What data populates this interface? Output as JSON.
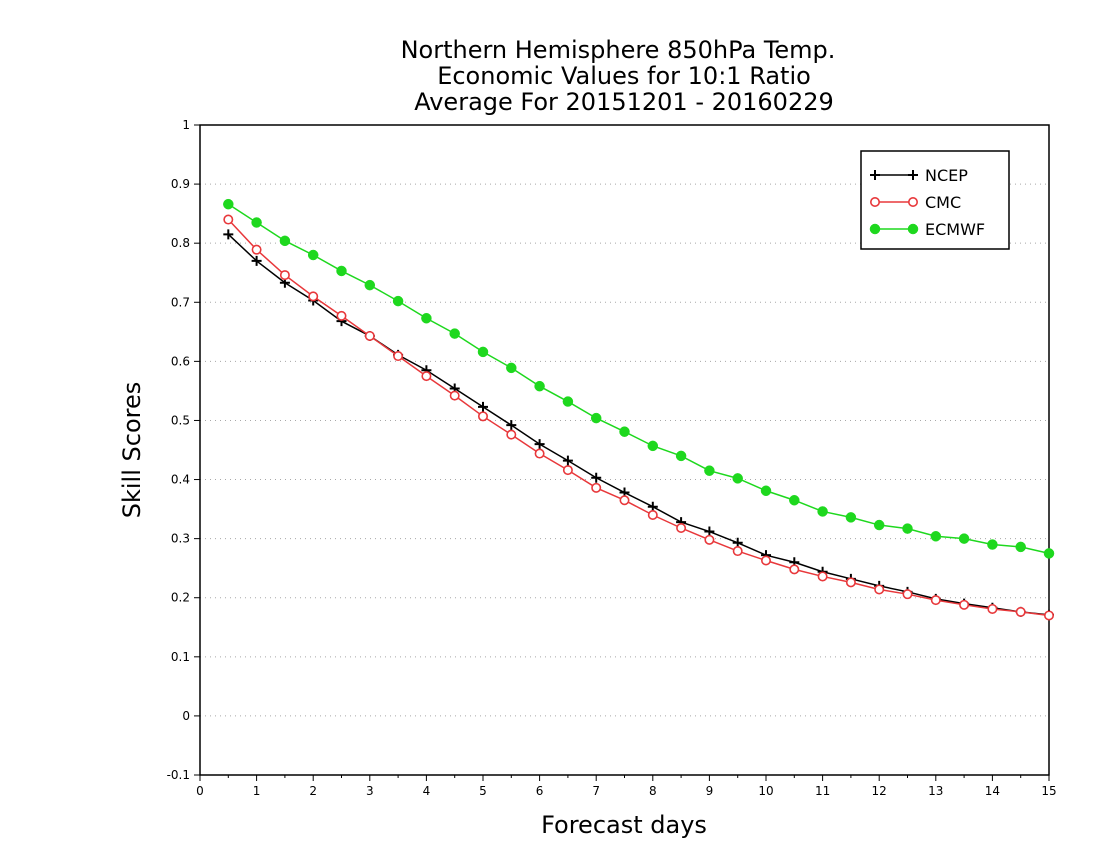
{
  "chart_data": {
    "type": "line",
    "title": [
      "Northern Hemisphere 850hPa Temp.",
      "Economic Values for 10:1 Ratio",
      "Average For 20151201 - 20160229"
    ],
    "xlabel": "Forecast days",
    "ylabel": "Skill Scores",
    "xlim": [
      0,
      15
    ],
    "ylim": [
      -0.1,
      1
    ],
    "x_ticks": [
      0,
      1,
      2,
      3,
      4,
      5,
      6,
      7,
      8,
      9,
      10,
      11,
      12,
      13,
      14,
      15
    ],
    "x_tick_labels": [
      "0",
      "1",
      "2",
      "3",
      "4",
      "5",
      "6",
      "7",
      "8",
      "9",
      "10",
      "11",
      "12",
      "13",
      "14",
      "15"
    ],
    "y_ticks": [
      -0.1,
      0,
      0.1,
      0.2,
      0.3,
      0.4,
      0.5,
      0.6,
      0.7,
      0.8,
      0.9,
      1
    ],
    "y_tick_labels": [
      "-0.1",
      "0",
      "0.1",
      "0.2",
      "0.3",
      "0.4",
      "0.5",
      "0.6",
      "0.7",
      "0.8",
      "0.9",
      "1"
    ],
    "grid": "horizontal dotted",
    "legend_position": "top-right",
    "x": [
      0.5,
      1,
      1.5,
      2,
      2.5,
      3,
      3.5,
      4,
      4.5,
      5,
      5.5,
      6,
      6.5,
      7,
      7.5,
      8,
      8.5,
      9,
      9.5,
      10,
      10.5,
      11,
      11.5,
      12,
      12.5,
      13,
      13.5,
      14,
      14.5,
      15
    ],
    "series": [
      {
        "name": "NCEP",
        "color": "#000000",
        "marker": "plus",
        "values": [
          0.815,
          0.77,
          0.733,
          0.703,
          0.668,
          0.643,
          0.611,
          0.585,
          0.554,
          0.523,
          0.492,
          0.46,
          0.432,
          0.403,
          0.378,
          0.354,
          0.328,
          0.312,
          0.293,
          0.272,
          0.26,
          0.244,
          0.232,
          0.22,
          0.21,
          0.198,
          0.19,
          0.183,
          0.176,
          0.171
        ]
      },
      {
        "name": "CMC",
        "color": "#e8383b",
        "marker": "open-circle",
        "values": [
          0.84,
          0.789,
          0.746,
          0.71,
          0.677,
          0.643,
          0.609,
          0.575,
          0.542,
          0.507,
          0.476,
          0.444,
          0.416,
          0.386,
          0.365,
          0.34,
          0.318,
          0.298,
          0.279,
          0.263,
          0.248,
          0.236,
          0.226,
          0.214,
          0.206,
          0.196,
          0.188,
          0.181,
          0.176,
          0.17
        ]
      },
      {
        "name": "ECMWF",
        "color": "#1ed81e",
        "marker": "filled-circle",
        "values": [
          0.866,
          0.835,
          0.804,
          0.78,
          0.753,
          0.729,
          0.702,
          0.673,
          0.647,
          0.616,
          0.589,
          0.558,
          0.532,
          0.504,
          0.481,
          0.457,
          0.44,
          0.415,
          0.402,
          0.381,
          0.365,
          0.346,
          0.336,
          0.323,
          0.317,
          0.304,
          0.3,
          0.29,
          0.286,
          0.275
        ]
      }
    ]
  }
}
